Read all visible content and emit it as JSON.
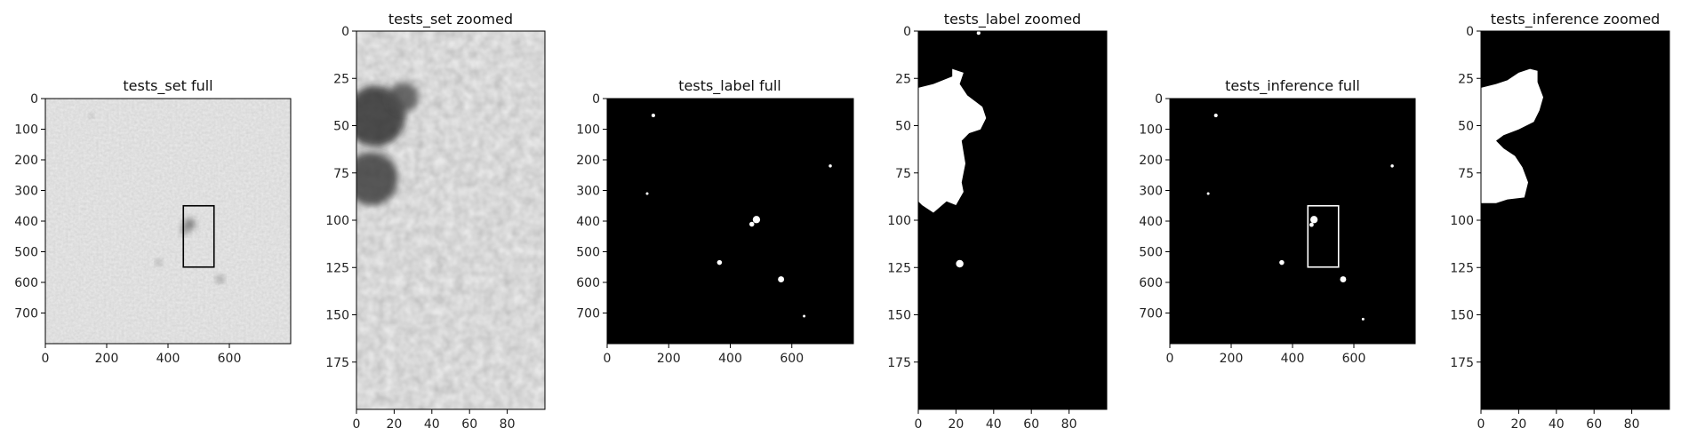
{
  "figure": {
    "background": "#ffffff",
    "frame_color": "#000000"
  },
  "chart_data": [
    {
      "type": "heatmap",
      "title": "tests_set full",
      "colormap": "gray",
      "x_ticks": [
        0,
        200,
        400,
        600
      ],
      "y_ticks": [
        0,
        100,
        200,
        300,
        400,
        500,
        600,
        700
      ],
      "xlim": [
        0,
        800
      ],
      "ylim": [
        800,
        0
      ],
      "highlight_rect": {
        "x0": 450,
        "x1": 550,
        "y0": 350,
        "y1": 550,
        "color": "#000000"
      },
      "blobs": [
        {
          "x": 470,
          "y": 410,
          "r": 18,
          "v": 0.35
        },
        {
          "x": 455,
          "y": 430,
          "r": 12,
          "v": 0.4
        },
        {
          "x": 570,
          "y": 590,
          "r": 10,
          "v": 0.3
        },
        {
          "x": 370,
          "y": 535,
          "r": 8,
          "v": 0.35
        },
        {
          "x": 150,
          "y": 55,
          "r": 6,
          "v": 0.4
        }
      ]
    },
    {
      "type": "heatmap",
      "title": "tests_set zoomed",
      "colormap": "gray",
      "x_ticks": [
        0,
        20,
        40,
        60,
        80
      ],
      "y_ticks": [
        0,
        25,
        50,
        75,
        100,
        125,
        150,
        175
      ],
      "xlim": [
        0,
        100
      ],
      "ylim": [
        200,
        0
      ],
      "blobs": [
        {
          "x": 10,
          "y": 45,
          "r": 16,
          "v": 0.15
        },
        {
          "x": 8,
          "y": 78,
          "r": 14,
          "v": 0.2
        },
        {
          "x": 25,
          "y": 35,
          "r": 8,
          "v": 0.3
        }
      ]
    },
    {
      "type": "heatmap",
      "title": "tests_label full",
      "colormap": "binary",
      "x_ticks": [
        0,
        200,
        400,
        600
      ],
      "y_ticks": [
        0,
        100,
        200,
        300,
        400,
        500,
        600,
        700
      ],
      "xlim": [
        0,
        800
      ],
      "ylim": [
        800,
        0
      ],
      "spots": [
        {
          "x": 485,
          "y": 395,
          "r": 12
        },
        {
          "x": 470,
          "y": 410,
          "r": 8
        },
        {
          "x": 565,
          "y": 590,
          "r": 10
        },
        {
          "x": 365,
          "y": 535,
          "r": 8
        },
        {
          "x": 150,
          "y": 55,
          "r": 6
        },
        {
          "x": 725,
          "y": 220,
          "r": 5
        },
        {
          "x": 130,
          "y": 310,
          "r": 3
        },
        {
          "x": 640,
          "y": 710,
          "r": 3
        }
      ]
    },
    {
      "type": "heatmap",
      "title": "tests_label zoomed",
      "colormap": "binary",
      "x_ticks": [
        0,
        20,
        40,
        60,
        80
      ],
      "y_ticks": [
        0,
        25,
        50,
        75,
        100,
        125,
        150,
        175
      ],
      "xlim": [
        0,
        100
      ],
      "ylim": [
        200,
        0
      ],
      "shape_points": [
        [
          0,
          30
        ],
        [
          8,
          28
        ],
        [
          13,
          26
        ],
        [
          18,
          24
        ],
        [
          18,
          20
        ],
        [
          21,
          21
        ],
        [
          24,
          22
        ],
        [
          22,
          28
        ],
        [
          26,
          34
        ],
        [
          34,
          40
        ],
        [
          36,
          46
        ],
        [
          33,
          52
        ],
        [
          27,
          54
        ],
        [
          23,
          58
        ],
        [
          25,
          70
        ],
        [
          23,
          80
        ],
        [
          24,
          85
        ],
        [
          20,
          92
        ],
        [
          15,
          90
        ],
        [
          8,
          96
        ],
        [
          2,
          92
        ],
        [
          0,
          90
        ]
      ],
      "small_spots": [
        {
          "x": 22,
          "y": 123,
          "r": 2
        },
        {
          "x": 32,
          "y": 1,
          "r": 1
        }
      ]
    },
    {
      "type": "heatmap",
      "title": "tests_inference full",
      "colormap": "binary",
      "x_ticks": [
        0,
        200,
        400,
        600
      ],
      "y_ticks": [
        0,
        100,
        200,
        300,
        400,
        500,
        600,
        700
      ],
      "xlim": [
        0,
        800
      ],
      "ylim": [
        800,
        0
      ],
      "highlight_rect": {
        "x0": 450,
        "x1": 550,
        "y0": 350,
        "y1": 550,
        "color": "#ffffff"
      },
      "spots": [
        {
          "x": 470,
          "y": 395,
          "r": 12
        },
        {
          "x": 462,
          "y": 412,
          "r": 7
        },
        {
          "x": 565,
          "y": 590,
          "r": 10
        },
        {
          "x": 365,
          "y": 535,
          "r": 8
        },
        {
          "x": 150,
          "y": 55,
          "r": 6
        },
        {
          "x": 725,
          "y": 220,
          "r": 5
        },
        {
          "x": 125,
          "y": 310,
          "r": 3
        },
        {
          "x": 630,
          "y": 720,
          "r": 3
        }
      ]
    },
    {
      "type": "heatmap",
      "title": "tests_inference zoomed",
      "colormap": "binary",
      "x_ticks": [
        0,
        20,
        40,
        60,
        80
      ],
      "y_ticks": [
        0,
        25,
        50,
        75,
        100,
        125,
        150,
        175
      ],
      "xlim": [
        0,
        100
      ],
      "ylim": [
        200,
        0
      ],
      "shape_points": [
        [
          0,
          30
        ],
        [
          8,
          28
        ],
        [
          14,
          26
        ],
        [
          20,
          22
        ],
        [
          26,
          20
        ],
        [
          30,
          21
        ],
        [
          30,
          27
        ],
        [
          33,
          35
        ],
        [
          31,
          42
        ],
        [
          28,
          48
        ],
        [
          20,
          52
        ],
        [
          12,
          55
        ],
        [
          8,
          58
        ],
        [
          12,
          62
        ],
        [
          18,
          66
        ],
        [
          22,
          72
        ],
        [
          25,
          80
        ],
        [
          23,
          88
        ],
        [
          14,
          89
        ],
        [
          8,
          91
        ],
        [
          0,
          91
        ]
      ],
      "small_spots": []
    }
  ]
}
